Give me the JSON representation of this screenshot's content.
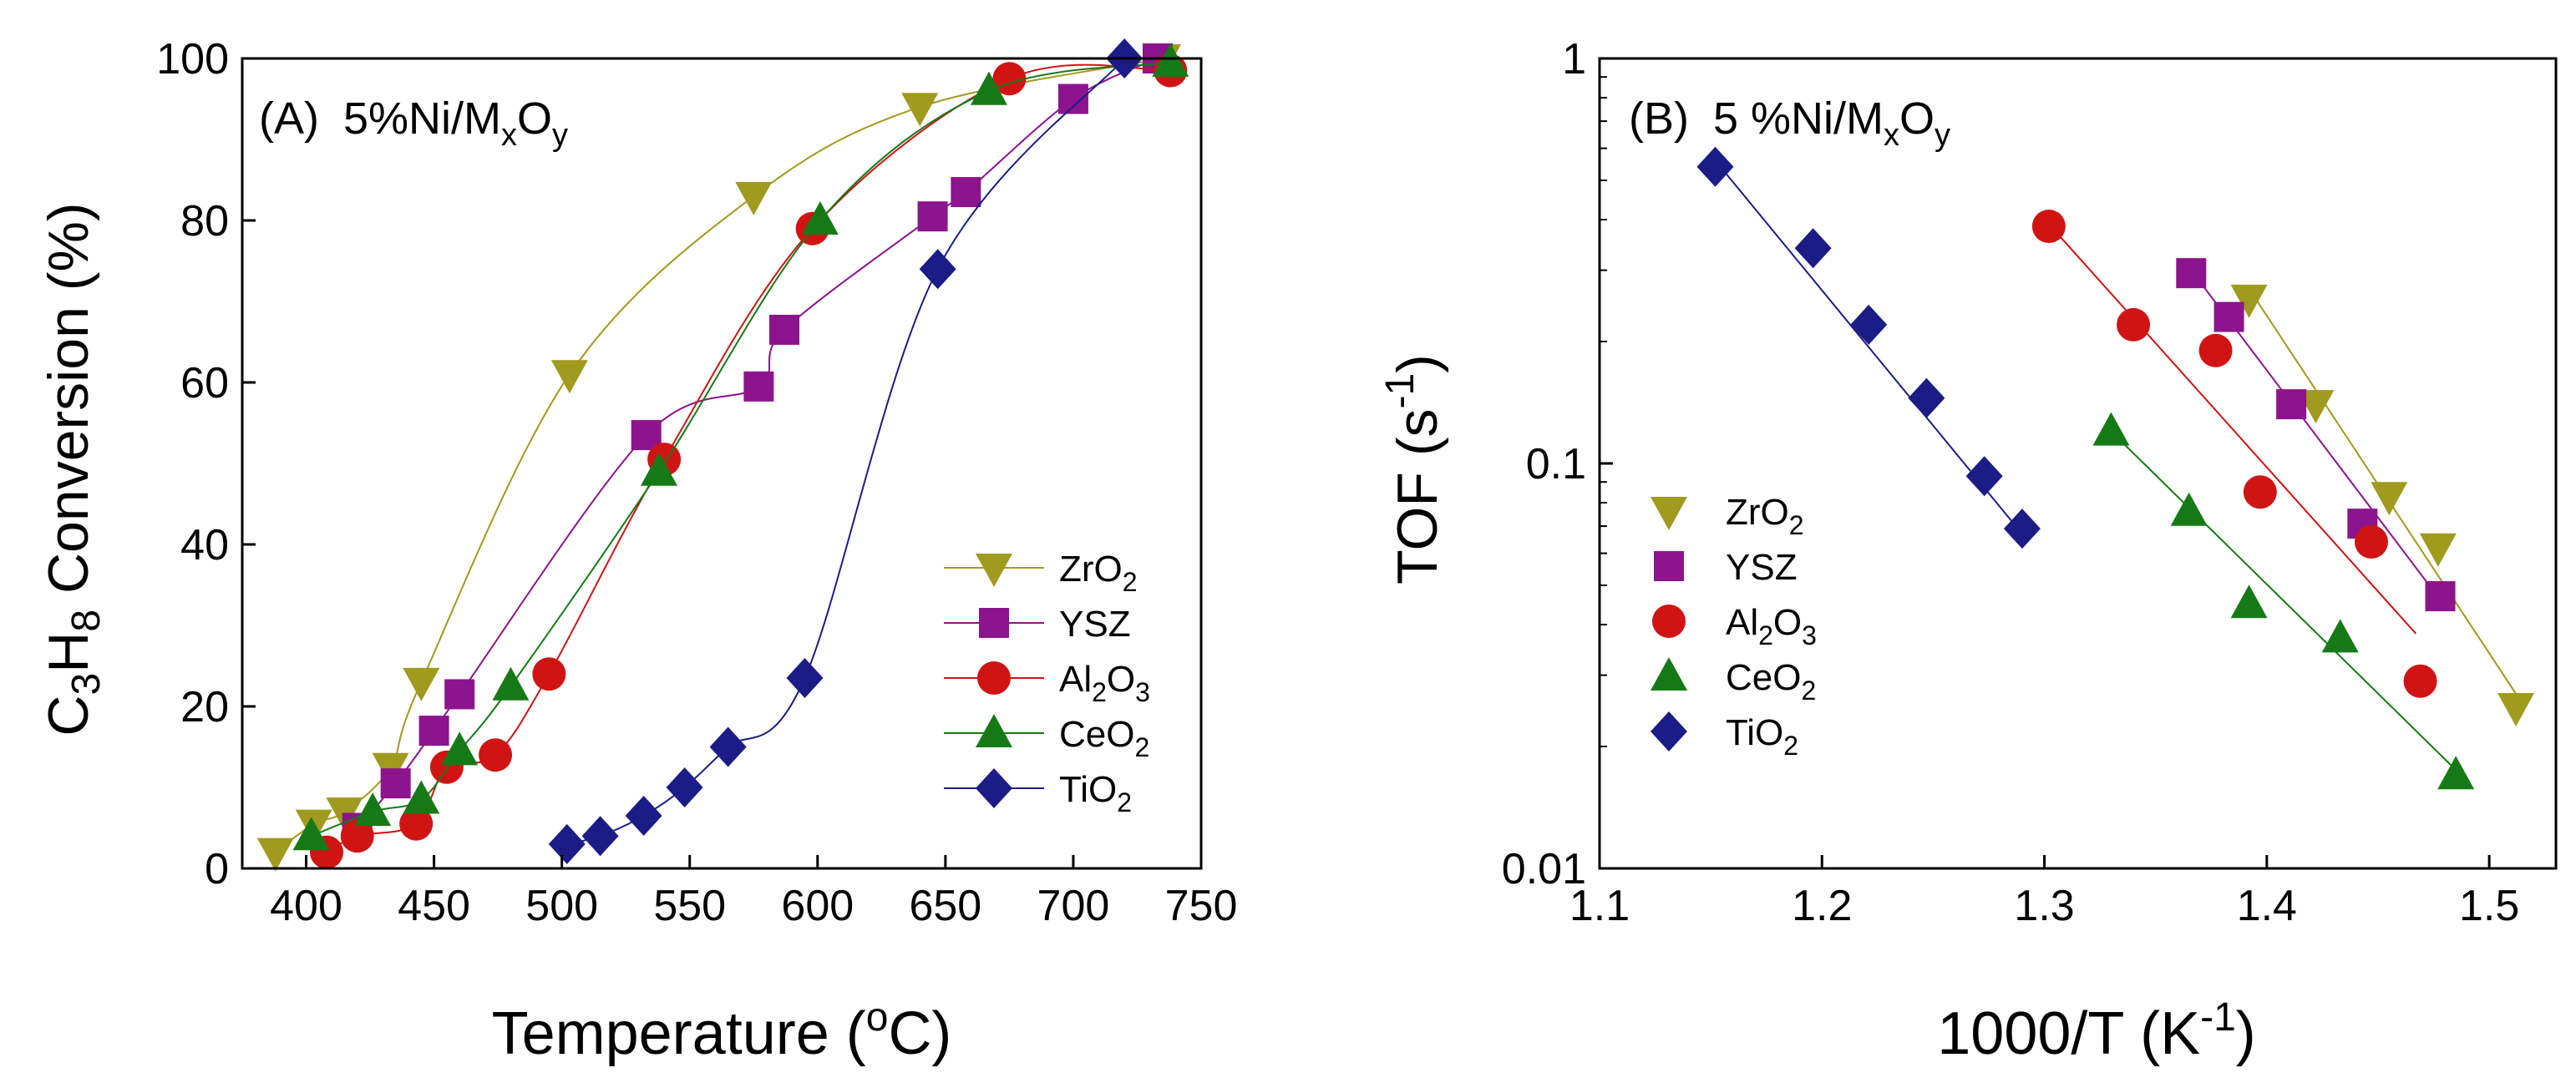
{
  "chart_data": [
    {
      "panel": "A",
      "type": "line",
      "panel_label": {
        "letter": "(A)",
        "text": "5%Ni/M",
        "sub1": "x",
        "mid": "O",
        "sub2": "y"
      },
      "xlabel": {
        "text": "Temperature (",
        "sup": "o",
        "tail": "C)"
      },
      "ylabel": {
        "p1": "C",
        "s1": "3",
        "p2": "H",
        "s2": "8",
        "p3": " Conversion (%)"
      },
      "xlim": [
        375,
        750
      ],
      "ylim": [
        0,
        100
      ],
      "xticks": [
        400,
        450,
        500,
        550,
        600,
        650,
        700,
        750
      ],
      "yticks": [
        0,
        20,
        40,
        60,
        80,
        100
      ],
      "legend_position": "bottom-right",
      "series": [
        {
          "name": "ZrO",
          "sub": "2",
          "color": "#a09a1e",
          "marker": "triangle-down",
          "x": [
            388,
            403,
            415,
            433,
            445,
            503,
            575,
            640,
            735
          ],
          "y": [
            2,
            5.5,
            7,
            12.5,
            23,
            61,
            83,
            94,
            100
          ]
        },
        {
          "name": "YSZ",
          "sub": "",
          "color": "#8c148c",
          "marker": "square",
          "x": [
            420,
            435,
            450,
            460,
            533,
            577,
            587,
            645,
            658,
            700,
            733
          ],
          "y": [
            5,
            10.5,
            17,
            21.5,
            53.5,
            59.5,
            66.5,
            80.5,
            83.5,
            95,
            100
          ]
        },
        {
          "name": "Al",
          "sub": "2",
          "name2": "O",
          "sub2": "3",
          "color": "#d01414",
          "marker": "circle",
          "x": [
            408,
            420,
            443,
            455,
            474,
            495,
            540,
            598,
            675,
            738
          ],
          "y": [
            2,
            4,
            5.5,
            12.5,
            14,
            24,
            50.5,
            79,
            97.5,
            98.5
          ]
        },
        {
          "name": "CeO",
          "sub": "2",
          "color": "#157a15",
          "marker": "triangle-up",
          "x": [
            402,
            426,
            445,
            460,
            480,
            538,
            601,
            667,
            738
          ],
          "y": [
            4,
            7,
            8.5,
            14.5,
            22.5,
            49,
            80,
            96,
            99.5
          ]
        },
        {
          "name": "TiO",
          "sub": "2",
          "color": "#1c1c86",
          "marker": "diamond",
          "x": [
            502,
            515,
            532,
            548,
            565,
            595,
            647,
            720
          ],
          "y": [
            3,
            4,
            6.5,
            10,
            15,
            23.5,
            74,
            100
          ]
        }
      ]
    },
    {
      "panel": "B",
      "type": "scatter",
      "panel_label": {
        "letter": "(B)",
        "text": "5 %Ni/M",
        "sub1": "x",
        "mid": "O",
        "sub2": "y"
      },
      "xlabel": {
        "text": "1000/T (K",
        "sup": "-1",
        "tail": ")"
      },
      "ylabel": {
        "text": "TOF (s",
        "sup": "-1",
        "tail": ")"
      },
      "xscale": "linear",
      "yscale": "log",
      "xlim": [
        1.1,
        1.53
      ],
      "ylim": [
        0.01,
        1
      ],
      "xticks": [
        1.1,
        1.2,
        1.3,
        1.4,
        1.5
      ],
      "xtick_labels": [
        "1.1",
        "1.2",
        "1.3",
        "1.4",
        "1.5"
      ],
      "yticks": [
        0.01,
        0.1,
        1
      ],
      "ytick_labels": [
        "0.01",
        "0.1",
        "1"
      ],
      "legend_position": "left-bottom",
      "series": [
        {
          "name": "ZrO",
          "sub": "2",
          "color": "#a09a1e",
          "marker": "triangle-down",
          "x": [
            1.392,
            1.422,
            1.455,
            1.477,
            1.512
          ],
          "y": [
            0.255,
            0.14,
            0.083,
            0.062,
            0.025
          ],
          "fit": [
            [
              1.392,
              0.27
            ],
            [
              1.512,
              0.027
            ]
          ]
        },
        {
          "name": "YSZ",
          "sub": "",
          "color": "#8c148c",
          "marker": "square",
          "x": [
            1.366,
            1.383,
            1.411,
            1.443,
            1.478
          ],
          "y": [
            0.295,
            0.23,
            0.14,
            0.071,
            0.047
          ],
          "fit": [
            [
              1.366,
              0.3
            ],
            [
              1.478,
              0.046
            ]
          ]
        },
        {
          "name": "Al",
          "sub": "2",
          "name2": "O",
          "sub2": "3",
          "color": "#d01414",
          "marker": "circle",
          "x": [
            1.302,
            1.34,
            1.377,
            1.397,
            1.447,
            1.469
          ],
          "y": [
            0.385,
            0.22,
            0.19,
            0.085,
            0.064,
            0.029
          ],
          "fit": [
            [
              1.302,
              0.39
            ],
            [
              1.467,
              0.038
            ]
          ]
        },
        {
          "name": "CeO",
          "sub": "2",
          "color": "#157a15",
          "marker": "triangle-up",
          "x": [
            1.33,
            1.365,
            1.392,
            1.433,
            1.485
          ],
          "y": [
            0.12,
            0.076,
            0.045,
            0.037,
            0.017
          ],
          "fit": [
            [
              1.33,
              0.12
            ],
            [
              1.485,
              0.0175
            ]
          ]
        },
        {
          "name": "TiO",
          "sub": "2",
          "color": "#1c1c86",
          "marker": "diamond",
          "x": [
            1.152,
            1.196,
            1.221,
            1.247,
            1.273,
            1.29
          ],
          "y": [
            0.54,
            0.34,
            0.22,
            0.145,
            0.093,
            0.069
          ],
          "fit": [
            [
              1.152,
              0.56
            ],
            [
              1.29,
              0.067
            ]
          ]
        }
      ]
    }
  ]
}
